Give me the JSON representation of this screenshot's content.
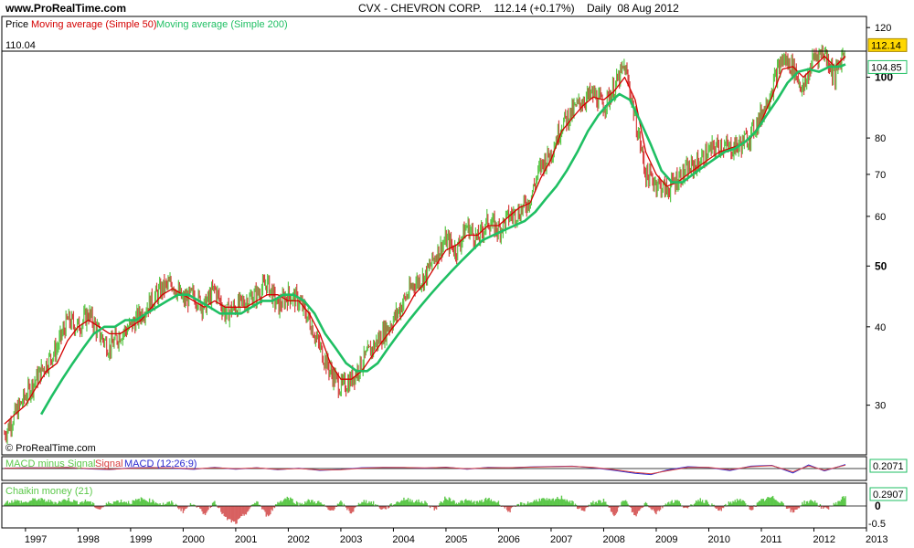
{
  "header": {
    "site": "www.ProRealTime.com",
    "symbol": "CVX - CHEVRON CORP.",
    "last": "112.14 (+0.17%)",
    "period": "Daily",
    "date": "08 Aug 2012"
  },
  "colors": {
    "up_bar": "#5cc84a",
    "down_bar": "#d84040",
    "ma50": "#d40000",
    "ma200": "#1fbf63",
    "macd": "#2a2ad0",
    "signal": "#d84040",
    "chaikin_up": "#5cc84a",
    "chaikin_down": "#d86060",
    "price_tag": "#ffd700"
  },
  "chart_data": [
    {
      "type": "line",
      "panel": "price",
      "title": "CVX - CHEVRON CORP. 112.14 (+0.17%) Daily 08 Aug 2012",
      "legend": [
        "Price",
        "Moving average (Simple 50)",
        "Moving average (Simple 200)"
      ],
      "yscale": "log",
      "ylim": [
        25,
        125
      ],
      "yticks": [
        30,
        40,
        50,
        60,
        70,
        80,
        100,
        120
      ],
      "yticks_bold": [
        50,
        100
      ],
      "x_ticks": [
        "1997",
        "1998",
        "1999",
        "2000",
        "2001",
        "2002",
        "2003",
        "2004",
        "2005",
        "2006",
        "2007",
        "2008",
        "2009",
        "2010",
        "2011",
        "2012",
        "2013"
      ],
      "xlim": [
        1996.55,
        2013.0
      ],
      "ref_line": {
        "label": "110.04",
        "value": 110.04
      },
      "last_price_tag": "112.14",
      "ma200_tag": "104.85",
      "copyright": "© ProRealTime.com",
      "series": [
        {
          "name": "Price",
          "x": [
            1996.6,
            1996.8,
            1997.0,
            1997.2,
            1997.4,
            1997.6,
            1997.8,
            1998.0,
            1998.2,
            1998.4,
            1998.6,
            1998.8,
            1999.0,
            1999.2,
            1999.4,
            1999.6,
            1999.8,
            2000.0,
            2000.2,
            2000.4,
            2000.6,
            2000.8,
            2001.0,
            2001.2,
            2001.4,
            2001.6,
            2001.8,
            2002.0,
            2002.2,
            2002.4,
            2002.6,
            2002.8,
            2003.0,
            2003.2,
            2003.4,
            2003.6,
            2003.8,
            2004.0,
            2004.2,
            2004.4,
            2004.6,
            2004.8,
            2005.0,
            2005.2,
            2005.4,
            2005.6,
            2005.8,
            2006.0,
            2006.2,
            2006.4,
            2006.6,
            2006.8,
            2007.0,
            2007.2,
            2007.4,
            2007.6,
            2007.8,
            2008.0,
            2008.2,
            2008.4,
            2008.6,
            2008.8,
            2009.0,
            2009.2,
            2009.4,
            2009.6,
            2009.8,
            2010.0,
            2010.2,
            2010.4,
            2010.6,
            2010.8,
            2011.0,
            2011.2,
            2011.4,
            2011.6,
            2011.8,
            2012.0,
            2012.2,
            2012.4,
            2012.6
          ],
          "values": [
            27,
            29,
            31,
            33,
            35,
            37,
            41,
            40,
            42,
            39,
            37,
            39,
            40,
            42,
            44,
            46,
            47,
            44,
            45,
            43,
            46,
            42,
            43,
            44,
            45,
            47,
            43,
            45,
            44,
            41,
            37,
            34,
            32,
            33,
            35,
            37,
            39,
            41,
            44,
            47,
            48,
            52,
            55,
            53,
            58,
            55,
            59,
            57,
            60,
            61,
            64,
            72,
            76,
            84,
            88,
            92,
            94,
            90,
            96,
            104,
            86,
            70,
            68,
            66,
            69,
            71,
            73,
            76,
            78,
            77,
            78,
            81,
            87,
            96,
            107,
            104,
            95,
            108,
            110,
            100,
            112
          ]
        },
        {
          "name": "Moving average (Simple 50)",
          "x": [
            1996.6,
            1996.8,
            1997.0,
            1997.2,
            1997.4,
            1997.6,
            1997.8,
            1998.0,
            1998.2,
            1998.4,
            1998.6,
            1998.8,
            1999.0,
            1999.2,
            1999.4,
            1999.6,
            1999.8,
            2000.0,
            2000.2,
            2000.4,
            2000.6,
            2000.8,
            2001.0,
            2001.2,
            2001.4,
            2001.6,
            2001.8,
            2002.0,
            2002.2,
            2002.4,
            2002.6,
            2002.8,
            2003.0,
            2003.2,
            2003.4,
            2003.6,
            2003.8,
            2004.0,
            2004.2,
            2004.4,
            2004.6,
            2004.8,
            2005.0,
            2005.2,
            2005.4,
            2005.6,
            2005.8,
            2006.0,
            2006.2,
            2006.4,
            2006.6,
            2006.8,
            2007.0,
            2007.2,
            2007.4,
            2007.6,
            2007.8,
            2008.0,
            2008.2,
            2008.4,
            2008.6,
            2008.8,
            2009.0,
            2009.2,
            2009.4,
            2009.6,
            2009.8,
            2010.0,
            2010.2,
            2010.4,
            2010.6,
            2010.8,
            2011.0,
            2011.2,
            2011.4,
            2011.6,
            2011.8,
            2012.0,
            2012.2,
            2012.4,
            2012.6
          ],
          "values": [
            28,
            29,
            30,
            32,
            34,
            35,
            38,
            40,
            41,
            40,
            39,
            39,
            40,
            41,
            43,
            45,
            46,
            45,
            44,
            43,
            44,
            43,
            43,
            43,
            44,
            45,
            45,
            44,
            44,
            42,
            39,
            35,
            33,
            33,
            34,
            36,
            38,
            40,
            42,
            45,
            47,
            50,
            53,
            54,
            56,
            56,
            58,
            58,
            60,
            62,
            63,
            69,
            74,
            82,
            86,
            90,
            93,
            92,
            95,
            100,
            92,
            76,
            70,
            67,
            68,
            70,
            72,
            74,
            76,
            77,
            78,
            80,
            85,
            93,
            103,
            104,
            100,
            104,
            108,
            104,
            108
          ]
        },
        {
          "name": "Moving average (Simple 200)",
          "x": [
            1997.3,
            1997.5,
            1997.7,
            1997.9,
            1998.1,
            1998.3,
            1998.5,
            1998.7,
            1998.9,
            1999.1,
            1999.3,
            1999.5,
            1999.7,
            1999.9,
            2000.1,
            2000.3,
            2000.5,
            2000.7,
            2000.9,
            2001.1,
            2001.3,
            2001.5,
            2001.7,
            2001.9,
            2002.1,
            2002.3,
            2002.5,
            2002.7,
            2002.9,
            2003.1,
            2003.3,
            2003.5,
            2003.7,
            2003.9,
            2004.1,
            2004.3,
            2004.5,
            2004.7,
            2004.9,
            2005.1,
            2005.3,
            2005.5,
            2005.7,
            2005.9,
            2006.1,
            2006.3,
            2006.5,
            2006.7,
            2006.9,
            2007.1,
            2007.3,
            2007.5,
            2007.7,
            2007.9,
            2008.1,
            2008.3,
            2008.5,
            2008.7,
            2008.9,
            2009.1,
            2009.3,
            2009.5,
            2009.7,
            2009.9,
            2010.1,
            2010.3,
            2010.5,
            2010.7,
            2010.9,
            2011.1,
            2011.3,
            2011.5,
            2011.7,
            2011.9,
            2012.1,
            2012.3,
            2012.5,
            2012.6
          ],
          "values": [
            29,
            31,
            33,
            35,
            37,
            39,
            40,
            40,
            41,
            41,
            42,
            43,
            44,
            45,
            45,
            44,
            43,
            42,
            42,
            42,
            43,
            44,
            44,
            45,
            45,
            44,
            42,
            39,
            37,
            35,
            34,
            34,
            35,
            37,
            39,
            41,
            43,
            45,
            47,
            49,
            51,
            53,
            55,
            56,
            57,
            58,
            59,
            61,
            64,
            67,
            71,
            76,
            82,
            87,
            91,
            94,
            92,
            85,
            78,
            71,
            68,
            68,
            70,
            72,
            74,
            76,
            77,
            79,
            82,
            87,
            92,
            98,
            102,
            103,
            102,
            104,
            104,
            104.85
          ]
        }
      ]
    },
    {
      "type": "line",
      "panel": "macd",
      "legend": [
        "MACD minus Signal",
        "Signal",
        "MACD (12;26;9)"
      ],
      "last_value_tag": "0.2071",
      "series": [
        {
          "name": "MACD (12;26;9)",
          "x": [
            1996.6,
            1997.0,
            1997.4,
            1997.8,
            1998.2,
            1998.6,
            1999.0,
            1999.4,
            1999.8,
            2000.2,
            2000.6,
            2001.0,
            2001.4,
            2001.8,
            2002.2,
            2002.6,
            2003.0,
            2003.4,
            2003.8,
            2004.2,
            2004.6,
            2005.0,
            2005.4,
            2005.8,
            2006.2,
            2006.6,
            2007.0,
            2007.4,
            2007.8,
            2008.2,
            2008.6,
            2008.9,
            2009.2,
            2009.6,
            2010.0,
            2010.4,
            2010.8,
            2011.2,
            2011.6,
            2011.9,
            2012.2,
            2012.6
          ],
          "values": [
            0.2,
            0.4,
            0.3,
            0.6,
            -0.2,
            -0.5,
            0.3,
            0.5,
            0.2,
            -0.4,
            0.6,
            -0.3,
            0.4,
            -0.6,
            0.2,
            -0.9,
            -0.5,
            0.4,
            0.6,
            0.5,
            0.2,
            0.7,
            -0.3,
            0.6,
            0.4,
            0.8,
            1.0,
            1.2,
            0.4,
            -0.9,
            -2.4,
            -3.0,
            -0.8,
            0.9,
            0.5,
            -1.0,
            1.2,
            1.6,
            -2.2,
            1.8,
            -1.2,
            2.0
          ]
        },
        {
          "name": "Signal",
          "x": [
            1996.6,
            1997.0,
            1997.4,
            1997.8,
            1998.2,
            1998.6,
            1999.0,
            1999.4,
            1999.8,
            2000.2,
            2000.6,
            2001.0,
            2001.4,
            2001.8,
            2002.2,
            2002.6,
            2003.0,
            2003.4,
            2003.8,
            2004.2,
            2004.6,
            2005.0,
            2005.4,
            2005.8,
            2006.2,
            2006.6,
            2007.0,
            2007.4,
            2007.8,
            2008.2,
            2008.6,
            2008.9,
            2009.2,
            2009.6,
            2010.0,
            2010.4,
            2010.8,
            2011.2,
            2011.6,
            2011.9,
            2012.2,
            2012.6
          ],
          "values": [
            0.1,
            0.3,
            0.3,
            0.5,
            0.0,
            -0.4,
            0.1,
            0.4,
            0.3,
            -0.2,
            0.4,
            -0.1,
            0.3,
            -0.4,
            0.0,
            -0.7,
            -0.6,
            0.2,
            0.5,
            0.5,
            0.3,
            0.6,
            -0.1,
            0.4,
            0.4,
            0.7,
            0.9,
            1.1,
            0.6,
            -0.6,
            -1.9,
            -2.6,
            -1.2,
            0.6,
            0.6,
            -0.6,
            0.9,
            1.4,
            -1.6,
            1.3,
            -0.8,
            1.7
          ]
        }
      ]
    },
    {
      "type": "bar",
      "panel": "chaikin",
      "legend": [
        "Chaikin money (21)"
      ],
      "yticks": [
        0,
        -0.5
      ],
      "last_value_tag": "0.2907",
      "x": [
        1996.6,
        1996.8,
        1997.0,
        1997.2,
        1997.4,
        1997.6,
        1997.8,
        1998.0,
        1998.2,
        1998.4,
        1998.6,
        1998.8,
        1999.0,
        1999.2,
        1999.4,
        1999.6,
        1999.8,
        2000.0,
        2000.2,
        2000.4,
        2000.6,
        2000.8,
        2001.0,
        2001.2,
        2001.4,
        2001.6,
        2001.8,
        2002.0,
        2002.2,
        2002.4,
        2002.6,
        2002.8,
        2003.0,
        2003.2,
        2003.4,
        2003.6,
        2003.8,
        2004.0,
        2004.2,
        2004.4,
        2004.6,
        2004.8,
        2005.0,
        2005.2,
        2005.4,
        2005.6,
        2005.8,
        2006.0,
        2006.2,
        2006.4,
        2006.6,
        2006.8,
        2007.0,
        2007.2,
        2007.4,
        2007.6,
        2007.8,
        2008.0,
        2008.2,
        2008.4,
        2008.6,
        2008.8,
        2009.0,
        2009.2,
        2009.4,
        2009.6,
        2009.8,
        2010.0,
        2010.2,
        2010.4,
        2010.6,
        2010.8,
        2011.0,
        2011.2,
        2011.4,
        2011.6,
        2011.8,
        2012.0,
        2012.2,
        2012.4,
        2012.6
      ],
      "values": [
        0.1,
        0.15,
        0.1,
        0.2,
        0.15,
        0.1,
        0.2,
        0.1,
        0.15,
        -0.1,
        0.1,
        0.15,
        0.1,
        0.2,
        0.15,
        0.05,
        0.1,
        -0.15,
        0.1,
        -0.25,
        0.15,
        -0.35,
        -0.5,
        -0.2,
        0.15,
        -0.3,
        0.1,
        0.25,
        0.05,
        0.15,
        0.1,
        -0.15,
        0.1,
        -0.2,
        0.15,
        0.1,
        -0.1,
        0.05,
        0.2,
        0.15,
        0.1,
        -0.1,
        0.25,
        0.1,
        0.15,
        0.1,
        0.2,
        0.1,
        -0.15,
        0.05,
        0.1,
        0.2,
        0.15,
        0.25,
        0.1,
        -0.15,
        0.1,
        0.15,
        -0.25,
        0.2,
        -0.3,
        0.1,
        -0.2,
        0.1,
        0.15,
        -0.1,
        0.2,
        0.1,
        -0.15,
        0.1,
        0.2,
        -0.1,
        0.15,
        0.25,
        0.1,
        -0.2,
        0.1,
        0.15,
        -0.1,
        0.05,
        0.29
      ]
    }
  ]
}
